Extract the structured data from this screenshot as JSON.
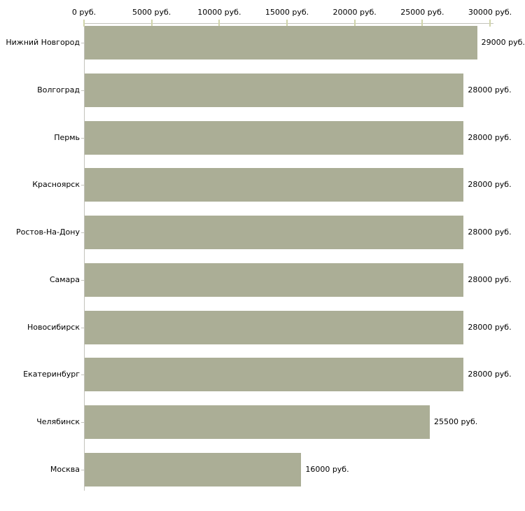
{
  "chart_data": {
    "type": "bar",
    "orientation": "horizontal",
    "title": "",
    "categories": [
      "Нижний Новгород",
      "Волгоград",
      "Пермь",
      "Красноярск",
      "Ростов-На-Дону",
      "Самара",
      "Новосибирск",
      "Екатеринбург",
      "Челябинск",
      "Москва"
    ],
    "values": [
      29000,
      28000,
      28000,
      28000,
      28000,
      28000,
      28000,
      28000,
      25500,
      16000
    ],
    "value_labels": [
      "29000 руб.",
      "28000 руб.",
      "28000 руб.",
      "28000 руб.",
      "28000 руб.",
      "28000 руб.",
      "28000 руб.",
      "28000 руб.",
      "25500 руб.",
      "16000 руб."
    ],
    "x_axis": {
      "position": "top",
      "min": 0,
      "max": 30000,
      "tick_step": 5000,
      "tick_values": [
        0,
        5000,
        10000,
        15000,
        20000,
        25000,
        30000
      ],
      "tick_labels": [
        "0 руб.",
        "5000 руб.",
        "10000 руб.",
        "15000 руб.",
        "20000 руб.",
        "25000 руб.",
        "30000 руб."
      ]
    },
    "grid": false,
    "legend": false,
    "xlabel": "",
    "ylabel": ""
  },
  "colors": {
    "bar": "#abae96",
    "axis_line": "#c3c3bb",
    "axis_tick": "#d0d4aa",
    "text": "#000000",
    "background": "#ffffff"
  }
}
